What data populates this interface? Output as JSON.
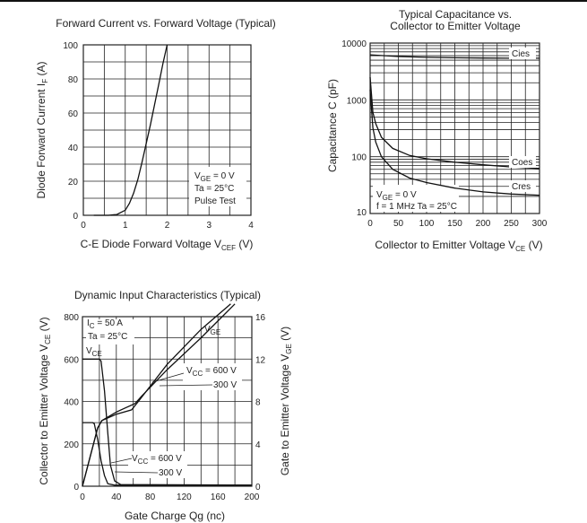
{
  "chart_data": [
    {
      "type": "line",
      "title": "Forward Current vs. Forward Voltage (Typical)",
      "xlabel": "C-E Diode Forward Voltage   V",
      "xlabel_sub": "CEF",
      "xlabel_unit": " (V)",
      "ylabel": "Diode Forward Current   I",
      "ylabel_sub": "F",
      "ylabel_unit": " (A)",
      "xlim": [
        0,
        4
      ],
      "ylim": [
        0,
        100
      ],
      "xticks": [
        0,
        1,
        2,
        3,
        4
      ],
      "yticks": [
        0,
        20,
        40,
        60,
        80,
        100
      ],
      "grid": true,
      "annotations": [
        {
          "text": "V",
          "sub": "GE",
          "rest": " = 0 V"
        },
        {
          "text": "Ta = 25°C"
        },
        {
          "text": "Pulse Test"
        }
      ],
      "series": [
        {
          "x": [
            0.6,
            0.8,
            1.0,
            1.1,
            1.2,
            1.3,
            1.4,
            1.5,
            1.6,
            1.7,
            1.8,
            1.9,
            2.0
          ],
          "y": [
            0,
            0.5,
            3,
            7,
            13,
            21,
            31,
            42,
            53,
            65,
            77,
            89,
            100
          ]
        }
      ]
    },
    {
      "type": "line",
      "title": "Typical Capacitance vs.",
      "title2": "Collector to Emitter Voltage",
      "xlabel": "Collector to Emitter Voltage   V",
      "xlabel_sub": "CE",
      "xlabel_unit": " (V)",
      "ylabel": "Capacitance   C (pF)",
      "xlim": [
        0,
        300
      ],
      "ylim": [
        10,
        10000
      ],
      "yscale": "log",
      "xticks": [
        0,
        50,
        100,
        150,
        200,
        250,
        300
      ],
      "yticks": [
        10,
        100,
        1000,
        10000
      ],
      "grid": true,
      "annotations": [
        {
          "text": "V",
          "sub": "GE",
          "rest": " = 0 V"
        },
        {
          "text": "f = 1 MHz   Ta = 25°C"
        }
      ],
      "series": [
        {
          "name": "Cies",
          "x": [
            0,
            50,
            100,
            150,
            200,
            250,
            300
          ],
          "y": [
            6200,
            5800,
            5600,
            5500,
            5450,
            5400,
            5400
          ]
        },
        {
          "name": "Coes",
          "x": [
            0,
            5,
            10,
            20,
            40,
            70,
            100,
            150,
            200,
            250,
            300
          ],
          "y": [
            2500,
            600,
            380,
            220,
            140,
            105,
            92,
            80,
            72,
            66,
            62
          ]
        },
        {
          "name": "Cres",
          "x": [
            0,
            5,
            10,
            20,
            40,
            70,
            100,
            150,
            200,
            250,
            300
          ],
          "y": [
            1500,
            320,
            180,
            100,
            60,
            42,
            35,
            28,
            24,
            22,
            21
          ]
        }
      ]
    },
    {
      "type": "line",
      "title": "Dynamic Input Characteristics (Typical)",
      "xlabel": "Gate Charge   Qg   (nc)",
      "ylabel": "Collector to Emitter Voltage   V",
      "ylabel_sub": "CE",
      "ylabel_unit": " (V)",
      "ylabel_right": "Gate to Emitter Voltage   V",
      "ylabel_right_sub": "GE",
      "ylabel_right_unit": " (V)",
      "xlim": [
        0,
        200
      ],
      "ylim": [
        0,
        800
      ],
      "ylim_right": [
        0,
        16
      ],
      "xticks": [
        0,
        40,
        80,
        120,
        160,
        200
      ],
      "yticks": [
        0,
        200,
        400,
        600,
        800
      ],
      "yticks_right": [
        0,
        4,
        8,
        12,
        16
      ],
      "grid": true,
      "annotations": [
        {
          "text": "I",
          "sub": "C",
          "rest": " = 50 A"
        },
        {
          "text": "Ta = 25°C"
        },
        {
          "text": "V",
          "sub": "CE",
          "rest": ""
        },
        {
          "text": "V",
          "sub": "GE",
          "rest": ""
        },
        {
          "text": "V",
          "sub": "CC",
          "rest": " = 600 V"
        },
        {
          "text": "300 V"
        },
        {
          "text": "V",
          "sub": "CC",
          "rest": " = 600 V"
        },
        {
          "text": "300 V"
        }
      ],
      "series": [
        {
          "name": "VGE 600 V",
          "axis": "right",
          "x": [
            0,
            18,
            23,
            40,
            62,
            70,
            100,
            140,
            180
          ],
          "y": [
            0,
            5.5,
            6.2,
            7.0,
            7.8,
            8.5,
            11.0,
            14.0,
            17.2
          ]
        },
        {
          "name": "VGE 300 V",
          "axis": "right",
          "x": [
            0,
            18,
            23,
            40,
            58,
            66,
            100,
            140,
            175
          ],
          "y": [
            0,
            5.5,
            6.2,
            6.8,
            7.2,
            8.0,
            11.5,
            14.8,
            17.2
          ]
        },
        {
          "name": "VCE 600 V",
          "axis": "left",
          "x": [
            0,
            20,
            22,
            26,
            30,
            33,
            38,
            45,
            200
          ],
          "y": [
            600,
            600,
            590,
            450,
            250,
            100,
            25,
            8,
            5
          ]
        },
        {
          "name": "VCE 300 V",
          "axis": "left",
          "x": [
            0,
            12,
            14,
            18,
            22,
            26,
            30,
            38,
            200
          ],
          "y": [
            300,
            300,
            295,
            220,
            120,
            50,
            12,
            5,
            5
          ]
        }
      ]
    }
  ]
}
